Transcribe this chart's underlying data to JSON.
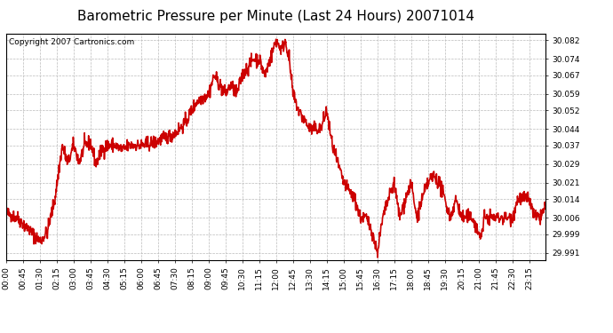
{
  "title": "Barometric Pressure per Minute (Last 24 Hours) 20071014",
  "copyright": "Copyright 2007 Cartronics.com",
  "line_color": "#cc0000",
  "bg_color": "#ffffff",
  "plot_bg_color": "#ffffff",
  "grid_color": "#bbbbbb",
  "yticks": [
    29.991,
    29.999,
    30.006,
    30.014,
    30.021,
    30.029,
    30.037,
    30.044,
    30.052,
    30.059,
    30.067,
    30.074,
    30.082
  ],
  "ylim": [
    29.988,
    30.085
  ],
  "xtick_labels": [
    "00:00",
    "00:45",
    "01:30",
    "02:15",
    "03:00",
    "03:45",
    "04:30",
    "05:15",
    "06:00",
    "06:45",
    "07:30",
    "08:15",
    "09:00",
    "09:45",
    "10:30",
    "11:15",
    "12:00",
    "12:45",
    "13:30",
    "14:15",
    "15:00",
    "15:45",
    "16:30",
    "17:15",
    "18:00",
    "18:45",
    "19:30",
    "20:15",
    "21:00",
    "21:45",
    "22:30",
    "23:15"
  ],
  "title_fontsize": 11,
  "tick_fontsize": 6.5,
  "copyright_fontsize": 6.5,
  "line_width": 1.2
}
